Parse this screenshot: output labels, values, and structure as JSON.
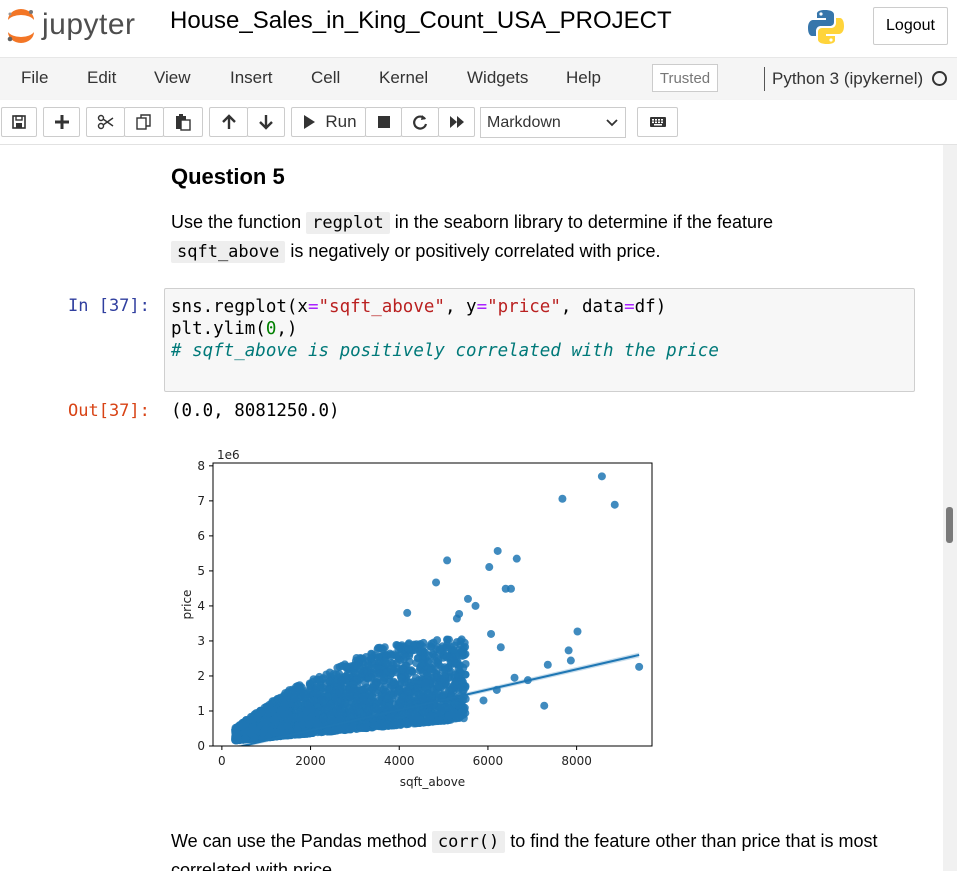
{
  "header": {
    "logo_text": "jupyter",
    "notebook_title": "House_Sales_in_King_Count_USA_PROJECT",
    "logout_label": "Logout"
  },
  "menubar": {
    "items": [
      "File",
      "Edit",
      "View",
      "Insert",
      "Cell",
      "Kernel",
      "Widgets",
      "Help"
    ],
    "trusted_label": "Trusted",
    "kernel_name": "Python 3 (ipykernel)"
  },
  "toolbar": {
    "run_label": "Run",
    "cell_type": "Markdown"
  },
  "markdown_cell": {
    "heading": "Question 5",
    "text_1": "Use the function",
    "code_1": "regplot",
    "text_2": "in the seaborn library to determine if the feature",
    "code_2": "sqft_above",
    "text_3": "is negatively or positively correlated with price."
  },
  "code_cell": {
    "prompt_in": "In [37]:",
    "line1_a": "sns.regplot(x",
    "line1_b": "=",
    "line1_c": "\"sqft_above\"",
    "line1_d": ", y",
    "line1_e": "=",
    "line1_f": "\"price\"",
    "line1_g": ", data",
    "line1_h": "=",
    "line1_i": "df)",
    "line2_a": "plt.ylim(",
    "line2_b": "0",
    "line2_c": ",)",
    "line3": "# sqft_above is positively correlated with the price",
    "prompt_out": "Out[37]:",
    "output_text": "(0.0, 8081250.0)"
  },
  "next_markdown": {
    "text_1": "We can use the Pandas method",
    "code_1": "corr()",
    "text_2": "to find the feature other than price that is most",
    "text_3": "correlated with price."
  },
  "chart_data": {
    "type": "scatter",
    "title": "",
    "xlabel": "sqft_above",
    "ylabel": "price",
    "y_offset_label": "1e6",
    "xlim": [
      -200,
      9700
    ],
    "ylim": [
      0,
      8.08125
    ],
    "x_ticks": [
      0,
      2000,
      4000,
      6000,
      8000
    ],
    "y_ticks": [
      0,
      1,
      2,
      3,
      4,
      5,
      6,
      7,
      8
    ],
    "color": "#1f77b4",
    "regression_line": {
      "x": [
        290,
        9410
      ],
      "y": [
        -0.05,
        2.6
      ]
    },
    "dense_cluster": {
      "x_range": [
        300,
        5500
      ],
      "y_min": 0.08,
      "y_max_at_x": [
        [
          500,
          0.7
        ],
        [
          1500,
          1.6
        ],
        [
          2500,
          2.2
        ],
        [
          3500,
          2.8
        ],
        [
          4500,
          3.0
        ],
        [
          5500,
          3.1
        ]
      ]
    },
    "outliers": [
      {
        "x": 8570,
        "y": 7.7
      },
      {
        "x": 7680,
        "y": 7.06
      },
      {
        "x": 8860,
        "y": 6.89
      },
      {
        "x": 6220,
        "y": 5.57
      },
      {
        "x": 6650,
        "y": 5.35
      },
      {
        "x": 5080,
        "y": 5.3
      },
      {
        "x": 6030,
        "y": 5.11
      },
      {
        "x": 4830,
        "y": 4.67
      },
      {
        "x": 6520,
        "y": 4.49
      },
      {
        "x": 6400,
        "y": 4.49
      },
      {
        "x": 5550,
        "y": 4.2
      },
      {
        "x": 5720,
        "y": 4.0
      },
      {
        "x": 5350,
        "y": 3.77
      },
      {
        "x": 5300,
        "y": 3.64
      },
      {
        "x": 4180,
        "y": 3.8
      },
      {
        "x": 8020,
        "y": 3.27
      },
      {
        "x": 6070,
        "y": 3.2
      },
      {
        "x": 6290,
        "y": 2.82
      },
      {
        "x": 7820,
        "y": 2.73
      },
      {
        "x": 7870,
        "y": 2.44
      },
      {
        "x": 9410,
        "y": 2.26
      },
      {
        "x": 7350,
        "y": 2.32
      },
      {
        "x": 6900,
        "y": 1.88
      },
      {
        "x": 6600,
        "y": 1.95
      },
      {
        "x": 7270,
        "y": 1.15
      },
      {
        "x": 5900,
        "y": 1.3
      },
      {
        "x": 6200,
        "y": 1.6
      }
    ]
  }
}
